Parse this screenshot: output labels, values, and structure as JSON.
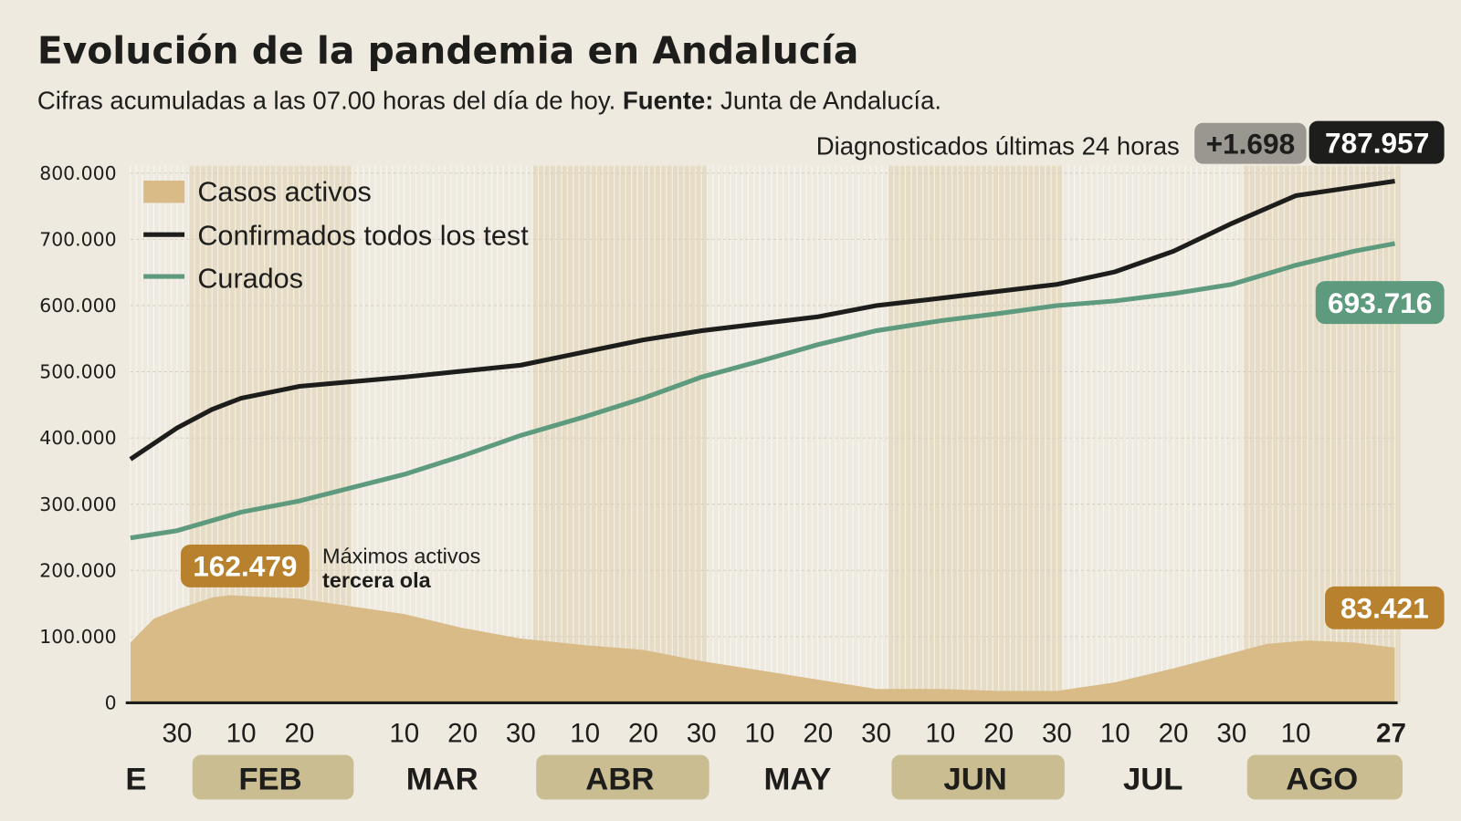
{
  "header": {
    "title": "Evolución de la pandemia en Andalucía",
    "subtitle_text": "Cifras acumuladas a las 07.00 horas del día de hoy.",
    "source_label": "Fuente:",
    "source_value": "Junta de Andalucía.",
    "diag_label": "Diagnosticados últimas 24 horas",
    "diag_increment": "+1.698",
    "diag_total": "787.957"
  },
  "colors": {
    "background": "#efeae0",
    "band": "#e6dcc6",
    "active": "#d9bb88",
    "confirmed": "#1d1d1b",
    "recovered": "#5e9b7e",
    "active_badge": "#b8812e",
    "month_pill": "#cbbd92"
  },
  "chart_data": {
    "type": "line",
    "title": "Evolución de la pandemia en Andalucía",
    "ylim": [
      0,
      800000
    ],
    "y_ticks": [
      "0",
      "100.000",
      "200.000",
      "300.000",
      "400.000",
      "500.000",
      "600.000",
      "700.000",
      "800.000"
    ],
    "y_tick_values": [
      0,
      100000,
      200000,
      300000,
      400000,
      500000,
      600000,
      700000,
      800000
    ],
    "xlim": [
      "2021-01-22",
      "2021-08-27"
    ],
    "grid": true,
    "legend_position": "top-left",
    "x_ticks": [
      {
        "date": "2021-01-30",
        "label": "30"
      },
      {
        "date": "2021-02-10",
        "label": "10"
      },
      {
        "date": "2021-02-20",
        "label": "20"
      },
      {
        "date": "2021-03-10",
        "label": "10"
      },
      {
        "date": "2021-03-20",
        "label": "20"
      },
      {
        "date": "2021-03-30",
        "label": "30"
      },
      {
        "date": "2021-04-10",
        "label": "10"
      },
      {
        "date": "2021-04-20",
        "label": "20"
      },
      {
        "date": "2021-04-30",
        "label": "30"
      },
      {
        "date": "2021-05-10",
        "label": "10"
      },
      {
        "date": "2021-05-20",
        "label": "20"
      },
      {
        "date": "2021-05-30",
        "label": "30"
      },
      {
        "date": "2021-06-10",
        "label": "10"
      },
      {
        "date": "2021-06-20",
        "label": "20"
      },
      {
        "date": "2021-06-30",
        "label": "30"
      },
      {
        "date": "2021-07-10",
        "label": "10"
      },
      {
        "date": "2021-07-20",
        "label": "20"
      },
      {
        "date": "2021-07-30",
        "label": "30"
      },
      {
        "date": "2021-08-10",
        "label": "10"
      },
      {
        "date": "2021-08-27",
        "label": "27"
      }
    ],
    "months": [
      {
        "label": "E",
        "start": "2021-01-22",
        "end": "2021-01-31",
        "shaded": false
      },
      {
        "label": "FEB",
        "start": "2021-02-01",
        "end": "2021-02-28",
        "shaded": true
      },
      {
        "label": "MAR",
        "start": "2021-03-01",
        "end": "2021-03-31",
        "shaded": false
      },
      {
        "label": "ABR",
        "start": "2021-04-01",
        "end": "2021-04-30",
        "shaded": true
      },
      {
        "label": "MAY",
        "start": "2021-05-01",
        "end": "2021-05-31",
        "shaded": false
      },
      {
        "label": "JUN",
        "start": "2021-06-01",
        "end": "2021-06-30",
        "shaded": true
      },
      {
        "label": "JUL",
        "start": "2021-07-01",
        "end": "2021-07-31",
        "shaded": false
      },
      {
        "label": "AGO",
        "start": "2021-08-01",
        "end": "2021-08-27",
        "shaded": true
      }
    ],
    "series": [
      {
        "name": "Casos activos",
        "type": "area",
        "points": [
          [
            "2021-01-22",
            91000
          ],
          [
            "2021-01-26",
            127000
          ],
          [
            "2021-01-30",
            141000
          ],
          [
            "2021-02-05",
            159000
          ],
          [
            "2021-02-08",
            162479
          ],
          [
            "2021-02-20",
            157000
          ],
          [
            "2021-03-10",
            134000
          ],
          [
            "2021-03-20",
            113000
          ],
          [
            "2021-03-30",
            97000
          ],
          [
            "2021-04-10",
            87000
          ],
          [
            "2021-04-20",
            80000
          ],
          [
            "2021-04-30",
            63000
          ],
          [
            "2021-05-10",
            49000
          ],
          [
            "2021-05-20",
            35000
          ],
          [
            "2021-05-30",
            21000
          ],
          [
            "2021-06-10",
            21000
          ],
          [
            "2021-06-20",
            18000
          ],
          [
            "2021-06-30",
            18000
          ],
          [
            "2021-07-10",
            31000
          ],
          [
            "2021-07-20",
            52000
          ],
          [
            "2021-07-30",
            75000
          ],
          [
            "2021-08-05",
            89000
          ],
          [
            "2021-08-12",
            94000
          ],
          [
            "2021-08-20",
            91000
          ],
          [
            "2021-08-27",
            83421
          ]
        ]
      },
      {
        "name": "Confirmados todos los test",
        "type": "line",
        "points": [
          [
            "2021-01-22",
            368000
          ],
          [
            "2021-01-30",
            415000
          ],
          [
            "2021-02-05",
            443000
          ],
          [
            "2021-02-10",
            460000
          ],
          [
            "2021-02-20",
            478000
          ],
          [
            "2021-03-10",
            492000
          ],
          [
            "2021-03-30",
            510000
          ],
          [
            "2021-04-10",
            530000
          ],
          [
            "2021-04-20",
            548000
          ],
          [
            "2021-04-30",
            562000
          ],
          [
            "2021-05-20",
            583000
          ],
          [
            "2021-05-30",
            600000
          ],
          [
            "2021-06-10",
            611000
          ],
          [
            "2021-06-30",
            632000
          ],
          [
            "2021-07-10",
            651000
          ],
          [
            "2021-07-20",
            682000
          ],
          [
            "2021-07-30",
            724000
          ],
          [
            "2021-08-10",
            766000
          ],
          [
            "2021-08-27",
            787957
          ]
        ]
      },
      {
        "name": "Curados",
        "type": "line",
        "points": [
          [
            "2021-01-22",
            249000
          ],
          [
            "2021-01-30",
            260000
          ],
          [
            "2021-02-10",
            288000
          ],
          [
            "2021-02-20",
            305000
          ],
          [
            "2021-03-10",
            345000
          ],
          [
            "2021-03-20",
            373000
          ],
          [
            "2021-03-30",
            404000
          ],
          [
            "2021-04-10",
            432000
          ],
          [
            "2021-04-20",
            460000
          ],
          [
            "2021-04-30",
            492000
          ],
          [
            "2021-05-10",
            516000
          ],
          [
            "2021-05-20",
            541000
          ],
          [
            "2021-05-30",
            562000
          ],
          [
            "2021-06-10",
            577000
          ],
          [
            "2021-06-20",
            588000
          ],
          [
            "2021-06-30",
            600000
          ],
          [
            "2021-07-10",
            607000
          ],
          [
            "2021-07-20",
            618000
          ],
          [
            "2021-07-30",
            632000
          ],
          [
            "2021-08-10",
            661000
          ],
          [
            "2021-08-20",
            682000
          ],
          [
            "2021-08-27",
            693716
          ]
        ]
      }
    ],
    "annotations": {
      "peak_value": "162.479",
      "peak_line1": "Máximos activos",
      "peak_line2": "tercera ola",
      "recovered_last": "693.716",
      "active_last": "83.421"
    }
  }
}
